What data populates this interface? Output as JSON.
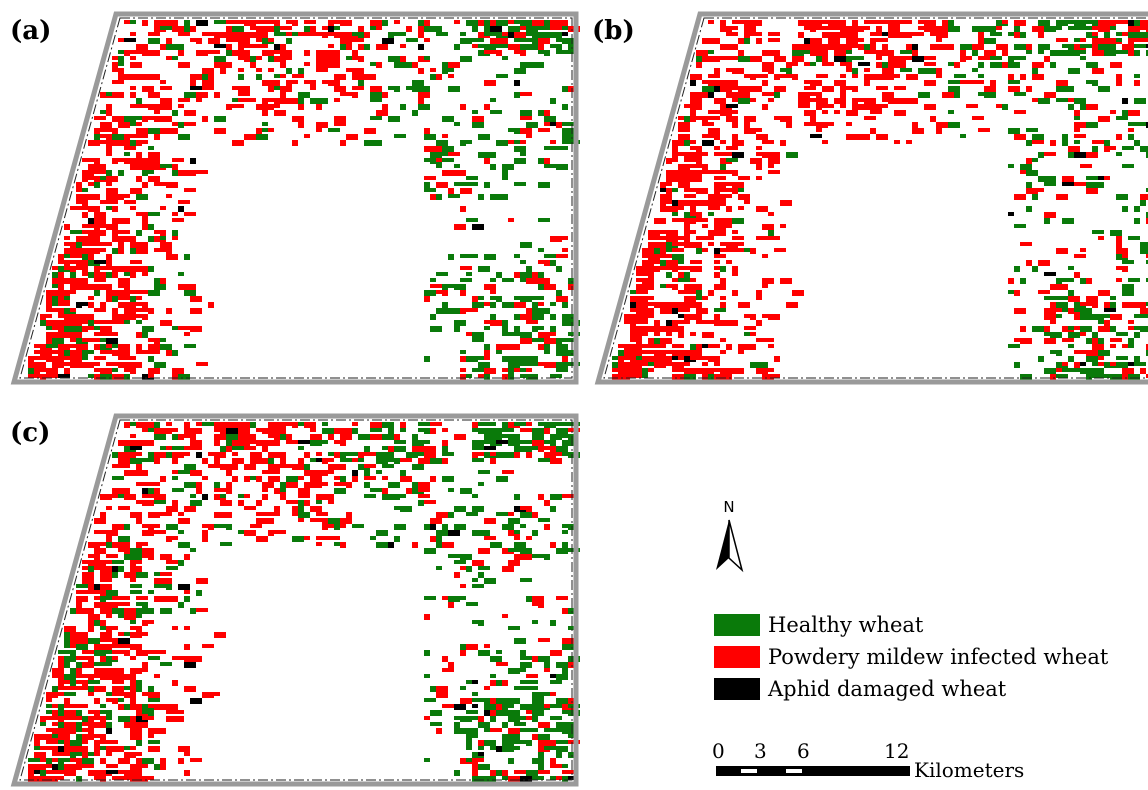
{
  "panels": [
    {
      "label": "(a)",
      "variant": 0
    },
    {
      "label": "(b)",
      "variant": 1
    },
    {
      "label": "(c)",
      "variant": 2
    }
  ],
  "north_arrow": {
    "letter": "N",
    "icon": "north-arrow-icon"
  },
  "legend": [
    {
      "label": "Healthy wheat",
      "color": "#0a7a0a"
    },
    {
      "label": "Powdery mildew infected wheat",
      "color": "#ff0000"
    },
    {
      "label": "Aphid damaged wheat",
      "color": "#000000"
    }
  ],
  "scale_bar": {
    "ticks": [
      "0",
      "3",
      "6",
      "12"
    ],
    "unit": "Kilometers"
  }
}
